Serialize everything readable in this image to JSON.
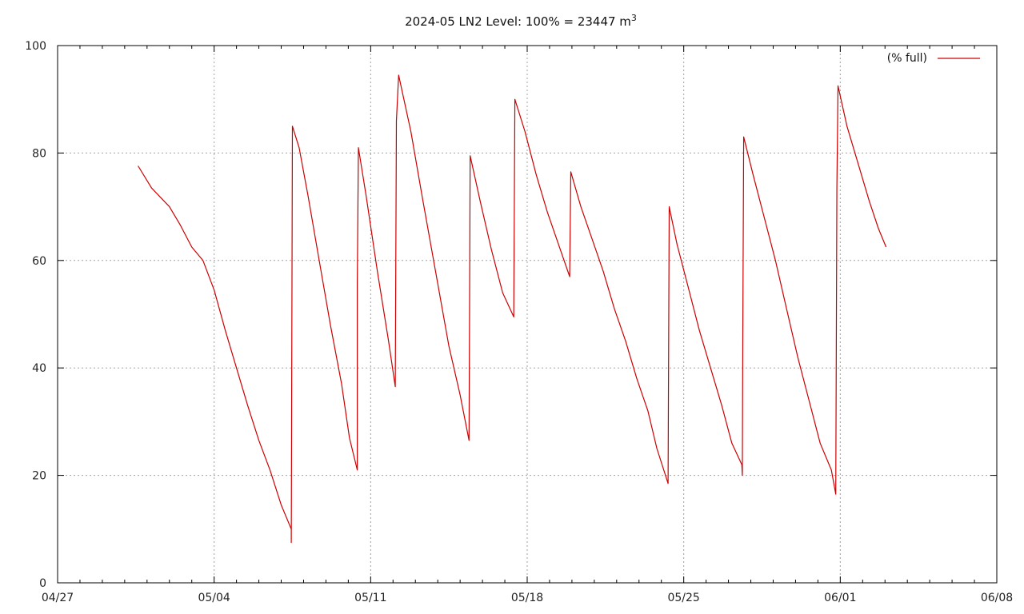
{
  "chart_data": {
    "type": "line",
    "title": "2024-05 LN2 Level: 100% = 23447 m",
    "title_superscript": "3",
    "xlabel": "",
    "ylabel": "",
    "x_unit": "day of 2024 (Apr 27 = 0)",
    "xlim_labels": [
      "04/27",
      "06/08"
    ],
    "ylim": [
      0,
      100
    ],
    "yticks": [
      0,
      20,
      40,
      60,
      80,
      100
    ],
    "xticks": [
      {
        "label": "04/27",
        "value": 0
      },
      {
        "label": "05/04",
        "value": 7
      },
      {
        "label": "05/11",
        "value": 14
      },
      {
        "label": "05/18",
        "value": 21
      },
      {
        "label": "05/25",
        "value": 28
      },
      {
        "label": "06/01",
        "value": 35
      },
      {
        "label": "06/08",
        "value": 42
      }
    ],
    "grid": true,
    "legend_position": "top-right",
    "color": "#cc0000",
    "series": [
      {
        "name": "(% full)",
        "points": [
          [
            3.6,
            77.6
          ],
          [
            4.2,
            73.5
          ],
          [
            5.0,
            70.0
          ],
          [
            5.5,
            66.5
          ],
          [
            6.0,
            62.5
          ],
          [
            6.5,
            60.0
          ],
          [
            7.0,
            54.5
          ],
          [
            7.5,
            47.0
          ],
          [
            8.0,
            40.0
          ],
          [
            8.5,
            33.0
          ],
          [
            9.0,
            26.5
          ],
          [
            9.5,
            21.0
          ],
          [
            10.0,
            14.5
          ],
          [
            10.45,
            10.0
          ],
          [
            10.45,
            7.5
          ],
          [
            10.5,
            85.0
          ],
          [
            10.8,
            81.0
          ],
          [
            11.2,
            72.0
          ],
          [
            11.7,
            60.0
          ],
          [
            12.2,
            48.0
          ],
          [
            12.7,
            37.0
          ],
          [
            13.05,
            27.0
          ],
          [
            13.4,
            21.0
          ],
          [
            13.4,
            55.5
          ],
          [
            13.45,
            81.0
          ],
          [
            13.8,
            72.0
          ],
          [
            14.3,
            58.0
          ],
          [
            14.8,
            45.0
          ],
          [
            15.1,
            36.5
          ],
          [
            15.15,
            86.0
          ],
          [
            15.25,
            94.5
          ],
          [
            15.8,
            84.0
          ],
          [
            16.3,
            72.0
          ],
          [
            16.9,
            58.0
          ],
          [
            17.5,
            44.0
          ],
          [
            18.0,
            35.0
          ],
          [
            18.4,
            26.5
          ],
          [
            18.45,
            79.5
          ],
          [
            18.9,
            71.0
          ],
          [
            19.4,
            62.0
          ],
          [
            19.9,
            54.0
          ],
          [
            20.4,
            49.5
          ],
          [
            20.45,
            90.0
          ],
          [
            20.9,
            84.0
          ],
          [
            21.4,
            76.0
          ],
          [
            21.9,
            69.0
          ],
          [
            22.4,
            63.0
          ],
          [
            22.9,
            57.0
          ],
          [
            22.95,
            76.5
          ],
          [
            23.4,
            70.0
          ],
          [
            23.9,
            64.0
          ],
          [
            24.4,
            58.0
          ],
          [
            24.9,
            51.0
          ],
          [
            25.4,
            45.0
          ],
          [
            25.9,
            38.0
          ],
          [
            26.4,
            32.0
          ],
          [
            26.8,
            25.0
          ],
          [
            27.3,
            18.5
          ],
          [
            27.35,
            70.0
          ],
          [
            27.7,
            63.0
          ],
          [
            28.2,
            55.0
          ],
          [
            28.7,
            47.0
          ],
          [
            29.2,
            40.0
          ],
          [
            29.7,
            33.0
          ],
          [
            30.15,
            26.0
          ],
          [
            30.6,
            22.0
          ],
          [
            30.62,
            20.0
          ],
          [
            30.64,
            46.0
          ],
          [
            30.68,
            83.0
          ],
          [
            31.1,
            76.0
          ],
          [
            31.6,
            68.0
          ],
          [
            32.1,
            60.0
          ],
          [
            32.6,
            51.0
          ],
          [
            33.1,
            42.0
          ],
          [
            33.6,
            34.0
          ],
          [
            34.1,
            26.0
          ],
          [
            34.6,
            21.0
          ],
          [
            34.8,
            16.5
          ],
          [
            34.85,
            73.5
          ],
          [
            34.9,
            92.5
          ],
          [
            35.3,
            85.0
          ],
          [
            35.8,
            78.0
          ],
          [
            36.3,
            71.0
          ],
          [
            36.7,
            66.0
          ],
          [
            37.05,
            62.5
          ]
        ]
      }
    ]
  }
}
